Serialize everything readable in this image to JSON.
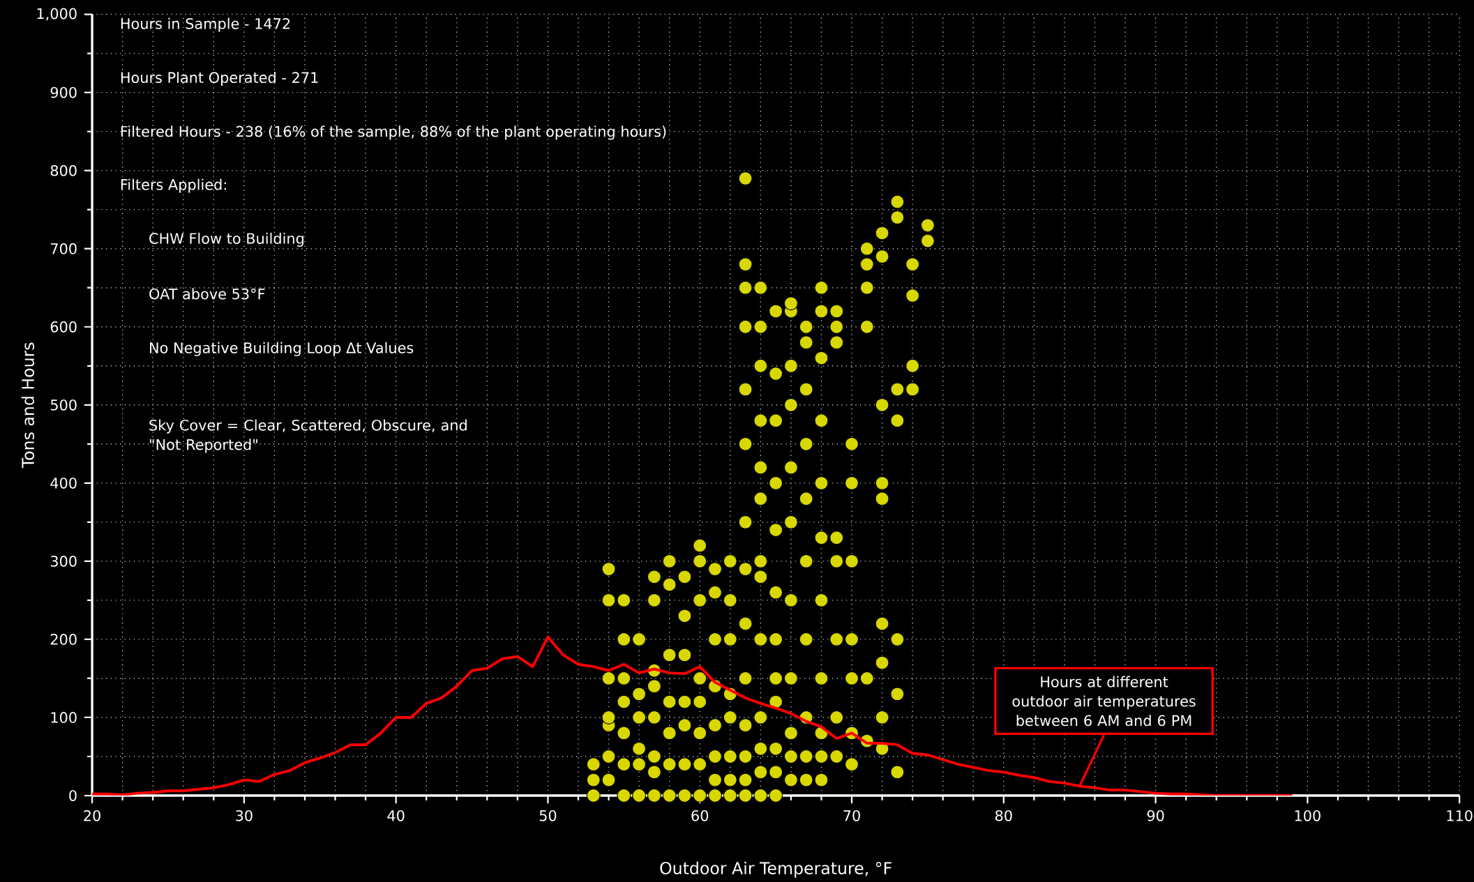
{
  "chart_data": {
    "type": "scatter",
    "xlabel": "Outdoor Air Temperature, °F",
    "ylabel": "Tons and Hours",
    "xlim": [
      20,
      110
    ],
    "xticks": [
      20,
      30,
      40,
      50,
      60,
      70,
      80,
      90,
      100,
      110
    ],
    "ylim": [
      0,
      1000
    ],
    "yticks": [
      0,
      100,
      200,
      300,
      400,
      500,
      600,
      700,
      800,
      900,
      {
        "value": 1000,
        "label": "1,000"
      }
    ],
    "grid": true,
    "series": [
      {
        "color": "#d8d800",
        "marker": "circle",
        "x": [
          53,
          53,
          53,
          54,
          54,
          54,
          54,
          54,
          54,
          54,
          55,
          55,
          55,
          55,
          55,
          55,
          55,
          56,
          56,
          56,
          56,
          56,
          56,
          57,
          57,
          57,
          57,
          57,
          57,
          57,
          57,
          58,
          58,
          58,
          58,
          58,
          58,
          58,
          59,
          59,
          59,
          59,
          59,
          59,
          59,
          60,
          60,
          60,
          60,
          60,
          60,
          60,
          60,
          61,
          61,
          61,
          61,
          61,
          61,
          61,
          61,
          62,
          62,
          62,
          62,
          62,
          62,
          62,
          62,
          63,
          63,
          63,
          63,
          63,
          63,
          63,
          63,
          63,
          63,
          63,
          63,
          63,
          63,
          64,
          64,
          64,
          64,
          64,
          64,
          64,
          64,
          64,
          64,
          64,
          64,
          64,
          65,
          65,
          65,
          65,
          65,
          65,
          65,
          65,
          65,
          65,
          65,
          65,
          66,
          66,
          66,
          66,
          66,
          66,
          66,
          66,
          66,
          66,
          66,
          67,
          67,
          67,
          67,
          67,
          67,
          67,
          67,
          67,
          67,
          68,
          68,
          68,
          68,
          68,
          68,
          68,
          68,
          68,
          68,
          68,
          69,
          69,
          69,
          69,
          69,
          69,
          69,
          69,
          70,
          70,
          70,
          70,
          70,
          70,
          70,
          71,
          71,
          71,
          71,
          71,
          71,
          72,
          72,
          72,
          72,
          72,
          72,
          72,
          72,
          72,
          73,
          73,
          73,
          73,
          73,
          73,
          73,
          74,
          74,
          74,
          74,
          75,
          75
        ],
        "values": [
          0,
          20,
          40,
          20,
          50,
          90,
          100,
          150,
          250,
          290,
          0,
          40,
          80,
          120,
          150,
          200,
          250,
          0,
          40,
          60,
          100,
          130,
          200,
          0,
          30,
          50,
          100,
          140,
          160,
          250,
          280,
          0,
          40,
          80,
          120,
          180,
          270,
          300,
          0,
          40,
          90,
          120,
          180,
          230,
          280,
          0,
          40,
          80,
          120,
          150,
          250,
          300,
          320,
          0,
          20,
          50,
          90,
          140,
          200,
          260,
          290,
          0,
          20,
          50,
          100,
          130,
          200,
          250,
          300,
          0,
          20,
          50,
          90,
          150,
          220,
          290,
          350,
          450,
          520,
          600,
          650,
          680,
          790,
          0,
          30,
          60,
          100,
          200,
          280,
          300,
          380,
          420,
          480,
          550,
          600,
          650,
          0,
          30,
          60,
          120,
          150,
          200,
          260,
          340,
          400,
          480,
          540,
          620,
          20,
          50,
          80,
          150,
          250,
          350,
          420,
          500,
          550,
          620,
          630,
          20,
          50,
          100,
          200,
          300,
          380,
          450,
          520,
          580,
          600,
          20,
          50,
          80,
          150,
          250,
          330,
          400,
          480,
          560,
          620,
          650,
          50,
          100,
          200,
          300,
          330,
          580,
          600,
          620,
          40,
          80,
          150,
          200,
          300,
          400,
          450,
          70,
          150,
          600,
          650,
          680,
          700,
          60,
          100,
          170,
          220,
          380,
          400,
          500,
          690,
          720,
          30,
          130,
          200,
          480,
          520,
          740,
          760,
          520,
          550,
          640,
          680,
          710,
          730
        ]
      },
      {
        "type": "line",
        "color": "#ff0000",
        "x": [
          20,
          21,
          22,
          23,
          24,
          25,
          26,
          27,
          28,
          29,
          30,
          31,
          32,
          33,
          34,
          35,
          36,
          37,
          38,
          39,
          40,
          41,
          42,
          43,
          44,
          45,
          46,
          47,
          48,
          49,
          50,
          51,
          52,
          53,
          54,
          55,
          56,
          57,
          58,
          59,
          60,
          61,
          62,
          63,
          64,
          65,
          66,
          67,
          68,
          69,
          70,
          71,
          72,
          73,
          74,
          75,
          76,
          77,
          78,
          79,
          80,
          81,
          82,
          83,
          84,
          85,
          86,
          87,
          88,
          89,
          90,
          91,
          92,
          93,
          94,
          95,
          96,
          97,
          98,
          99
        ],
        "values": [
          2,
          2,
          1,
          3,
          4,
          6,
          6,
          8,
          10,
          14,
          20,
          18,
          27,
          32,
          42,
          48,
          55,
          65,
          65,
          80,
          100,
          100,
          118,
          125,
          140,
          160,
          163,
          175,
          178,
          165,
          203,
          180,
          168,
          165,
          160,
          168,
          157,
          162,
          157,
          156,
          165,
          145,
          135,
          125,
          118,
          112,
          105,
          95,
          88,
          73,
          80,
          67,
          67,
          65,
          54,
          52,
          46,
          40,
          36,
          32,
          30,
          26,
          23,
          18,
          16,
          12,
          10,
          7,
          7,
          5,
          3,
          2,
          2,
          1,
          0,
          0,
          0,
          0,
          0,
          0
        ]
      }
    ],
    "annotations": [
      "Hours in Sample - 1472",
      "Hours Plant Operated - 271",
      "Filtered Hours - 238 (16% of the sample, 88% of the plant operating hours)",
      "Filters Applied:",
      "CHW Flow to Building",
      "OAT above 53°F",
      "No Negative Building Loop Δt Values",
      "Sky Cover = Clear, Scattered, Obscure, and \"Not Reported\"",
      {
        "text": "Hours at different outdoor air temperatures between 6 AM and 6 PM",
        "x": 85,
        "y": 12
      }
    ]
  }
}
